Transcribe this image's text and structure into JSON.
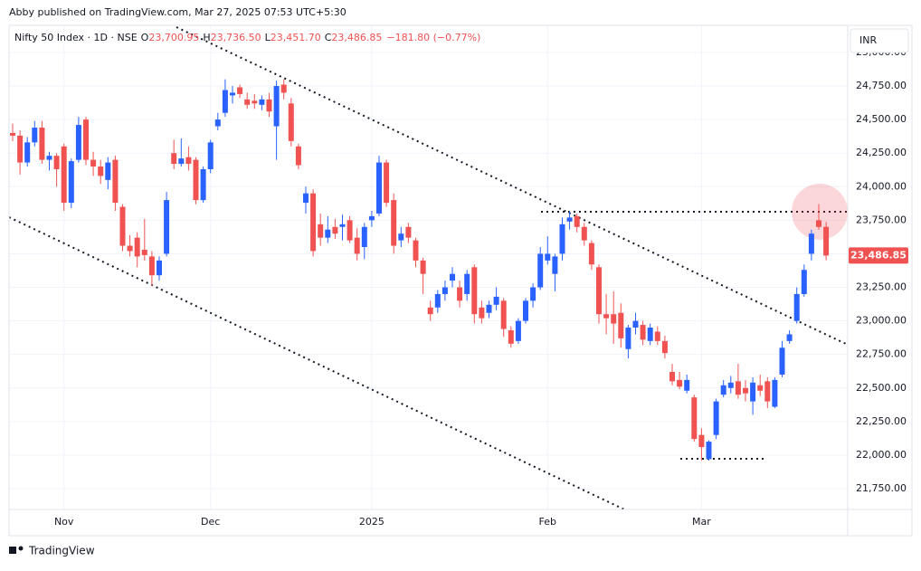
{
  "publisher": "Abby published on TradingView.com, Mar 27, 2025 07:53 UTC+5:30",
  "brand": "TradingView",
  "chart_data": {
    "type": "candlestick",
    "symbol": "Nifty 50 Index · 1D · NSE",
    "ohlc_letters": [
      "O",
      "H",
      "L",
      "C"
    ],
    "ohlc_values": [
      "23,700.95",
      "23,736.50",
      "23,451.70",
      "23,486.85"
    ],
    "change": "−181.80 (−0.77%)",
    "currency": "INR",
    "last_price_label": "23,486.85",
    "up_color": "#2962ff",
    "down_color": "#f05252",
    "categories": [
      null,
      null,
      null,
      null,
      null,
      null,
      null,
      "Nov",
      null,
      null,
      null,
      null,
      null,
      null,
      null,
      null,
      null,
      null,
      null,
      null,
      null,
      null,
      null,
      null,
      null,
      null,
      null,
      "Dec",
      null,
      null,
      null,
      null,
      null,
      null,
      null,
      null,
      null,
      null,
      null,
      null,
      null,
      null,
      null,
      null,
      null,
      null,
      null,
      null,
      null,
      "2025",
      null,
      null,
      null,
      null,
      null,
      null,
      null,
      null,
      null,
      null,
      null,
      null,
      null,
      null,
      null,
      null,
      null,
      null,
      null,
      null,
      null,
      null,
      null,
      "Feb",
      null,
      null,
      null,
      null,
      null,
      null,
      null,
      null,
      null,
      null,
      null,
      null,
      null,
      null,
      null,
      null,
      null,
      null,
      null,
      null,
      "Mar",
      null,
      null,
      null,
      null,
      null,
      null,
      null,
      null,
      null,
      null,
      null,
      null,
      null,
      null,
      null,
      null,
      null
    ],
    "open": [
      24400,
      24380,
      24180,
      24330,
      24440,
      24200,
      24230,
      24300,
      23880,
      24200,
      24500,
      24200,
      24150,
      24050,
      24200,
      23850,
      23560,
      23620,
      23530,
      23480,
      23340,
      23500,
      24250,
      24170,
      24220,
      24200,
      23900,
      24130,
      24450,
      24550,
      24680,
      24740,
      24650,
      24640,
      24610,
      24650,
      24450,
      24760,
      24620,
      24300,
      23880,
      23950,
      23720,
      23620,
      23700,
      23700,
      23750,
      23620,
      23550,
      23750,
      23800,
      24180,
      23900,
      23600,
      23700,
      23600,
      23450,
      23100,
      23100,
      23200,
      23300,
      23250,
      23200,
      23400,
      23100,
      23060,
      23120,
      23150,
      22930,
      22850,
      23000,
      23150,
      23250,
      23450,
      23350,
      23500,
      23740,
      23780,
      23700,
      23580,
      23400,
      23050,
      23050,
      23060,
      22790,
      22950,
      22970,
      22850,
      22920,
      22850,
      22620,
      22560,
      22480,
      22430,
      22150,
      21970,
      22150,
      22450,
      22500,
      22550,
      22500,
      22400,
      22520,
      22550,
      22360,
      22600,
      22850,
      23000,
      23200,
      23500,
      23750,
      23700.95
    ],
    "high": [
      24470,
      24420,
      24370,
      24490,
      24490,
      24260,
      24250,
      24320,
      24210,
      24520,
      24520,
      24260,
      24200,
      24220,
      24230,
      23870,
      23640,
      23660,
      23760,
      23520,
      23480,
      23960,
      24350,
      24360,
      24300,
      24220,
      24150,
      24350,
      24550,
      24800,
      24750,
      24760,
      24700,
      24690,
      24680,
      24700,
      24790,
      24800,
      24660,
      24320,
      24000,
      23980,
      23800,
      23780,
      23760,
      23790,
      23780,
      23690,
      23730,
      23820,
      24230,
      24200,
      23950,
      23700,
      23730,
      23620,
      23470,
      23150,
      23230,
      23300,
      23400,
      23300,
      23380,
      23420,
      23150,
      23150,
      23250,
      23170,
      22960,
      23020,
      23170,
      23280,
      23550,
      23630,
      23500,
      23770,
      23820,
      23800,
      23730,
      23600,
      23420,
      23200,
      23220,
      23130,
      22970,
      23060,
      23000,
      22980,
      22960,
      22890,
      22680,
      22620,
      22600,
      22450,
      22200,
      22110,
      22420,
      22560,
      22590,
      22680,
      22560,
      22580,
      22600,
      22580,
      22580,
      22850,
      22930,
      23250,
      23420,
      23680,
      23870,
      23736.5
    ],
    "low": [
      24340,
      24090,
      24150,
      24300,
      24170,
      24120,
      24000,
      23820,
      23840,
      24180,
      24160,
      24080,
      24020,
      23980,
      23820,
      23520,
      23480,
      23400,
      23450,
      23260,
      23300,
      23480,
      24130,
      24150,
      24120,
      23870,
      23880,
      24100,
      24420,
      24520,
      24620,
      24660,
      24580,
      24580,
      24570,
      24520,
      24200,
      24650,
      24300,
      24130,
      23800,
      23480,
      23560,
      23580,
      23610,
      23600,
      23580,
      23450,
      23460,
      23700,
      23780,
      23850,
      23500,
      23550,
      23580,
      23400,
      23200,
      23000,
      23060,
      23150,
      23250,
      23100,
      23150,
      22980,
      22980,
      23020,
      23080,
      22880,
      22800,
      22830,
      22980,
      23100,
      23230,
      23420,
      23220,
      23450,
      23680,
      23660,
      23560,
      23380,
      22980,
      22900,
      22830,
      22800,
      22720,
      22900,
      22820,
      22820,
      22820,
      22720,
      22520,
      22490,
      22460,
      22100,
      21960,
      21960,
      22120,
      22430,
      22460,
      22420,
      22400,
      22300,
      22440,
      22350,
      22350,
      22580,
      22830,
      22980,
      23180,
      23450,
      23680,
      23451.7
    ],
    "close": [
      24380,
      24180,
      24330,
      24440,
      24200,
      24230,
      24130,
      23880,
      24190,
      24460,
      24200,
      24150,
      24080,
      24180,
      23880,
      23560,
      23520,
      23480,
      23490,
      23340,
      23450,
      23900,
      24170,
      24210,
      24170,
      23900,
      24130,
      24330,
      24500,
      24720,
      24700,
      24690,
      24610,
      24620,
      24650,
      24560,
      24750,
      24700,
      24340,
      24160,
      23950,
      23520,
      23620,
      23680,
      23650,
      23720,
      23600,
      23500,
      23700,
      23780,
      24180,
      23880,
      23560,
      23650,
      23620,
      23450,
      23350,
      23050,
      23200,
      23250,
      23350,
      23150,
      23350,
      23050,
      23020,
      23120,
      23180,
      22940,
      22830,
      23000,
      23150,
      23250,
      23500,
      23500,
      23480,
      23720,
      23770,
      23700,
      23600,
      23420,
      23050,
      23020,
      22980,
      22870,
      22950,
      23000,
      22860,
      22950,
      22850,
      22760,
      22550,
      22510,
      22560,
      22120,
      22060,
      22100,
      22400,
      22520,
      22540,
      22450,
      22460,
      22540,
      22480,
      22400,
      22560,
      22800,
      22900,
      23200,
      23380,
      23650,
      23700,
      23486.85
    ],
    "ylim": [
      21595,
      25202
    ],
    "yticks": [
      {
        "value": 21750,
        "label": "21,750.00"
      },
      {
        "value": 22000,
        "label": "22,000.00"
      },
      {
        "value": 22250,
        "label": "22,250.00"
      },
      {
        "value": 22500,
        "label": "22,500.00"
      },
      {
        "value": 22750,
        "label": "22,750.00"
      },
      {
        "value": 23000,
        "label": "23,000.00"
      },
      {
        "value": 23250,
        "label": "23,250.00"
      },
      {
        "value": 23500,
        "label": "23,500.00"
      },
      {
        "value": 23750,
        "label": "23,750.00"
      },
      {
        "value": 24000,
        "label": "24,000.00"
      },
      {
        "value": 24250,
        "label": "24,250.00"
      },
      {
        "value": 24500,
        "label": "24,500.00"
      },
      {
        "value": 24750,
        "label": "24,750.00"
      },
      {
        "value": 25000,
        "label": "25,000.00"
      }
    ],
    "grid": true
  }
}
